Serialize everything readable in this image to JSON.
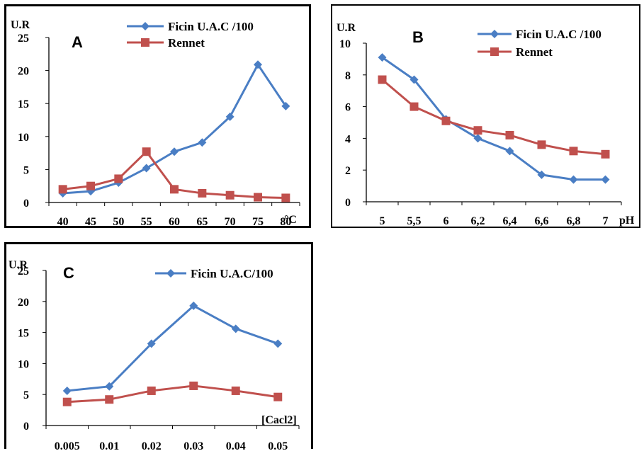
{
  "colors": {
    "ficin": "#4a7ec4",
    "rennet": "#c0504d"
  },
  "chart_data": [
    {
      "id": "A",
      "type": "line",
      "panel_letter": "A",
      "ylabel": "U.R",
      "xlabel": "°C",
      "categories": [
        "40",
        "45",
        "50",
        "55",
        "60",
        "65",
        "70",
        "75",
        "80"
      ],
      "ylim": [
        0,
        25
      ],
      "yticks": [
        "0",
        "5",
        "10",
        "15",
        "20",
        "25"
      ],
      "series": [
        {
          "name": "Ficin U.A.C /100",
          "marker": "diamond",
          "color": "#4a7ec4",
          "values": [
            1.4,
            1.7,
            3.0,
            5.2,
            7.7,
            9.1,
            13.0,
            20.9,
            14.6
          ]
        },
        {
          "name": "Rennet",
          "marker": "square",
          "color": "#c0504d",
          "values": [
            2.0,
            2.5,
            3.6,
            7.7,
            2.0,
            1.4,
            1.1,
            0.8,
            0.7
          ]
        }
      ],
      "legend": "top-right",
      "grid": false
    },
    {
      "id": "B",
      "type": "line",
      "panel_letter": "B",
      "ylabel": "U.R",
      "xlabel": "pH",
      "categories": [
        "5",
        "5,5",
        "6",
        "6,2",
        "6,4",
        "6,6",
        "6,8",
        "7"
      ],
      "ylim": [
        0,
        10
      ],
      "yticks": [
        "0",
        "2",
        "4",
        "6",
        "8",
        "10"
      ],
      "series": [
        {
          "name": "Ficin U.A.C /100",
          "marker": "diamond",
          "color": "#4a7ec4",
          "values": [
            9.1,
            7.7,
            5.2,
            4.0,
            3.2,
            1.7,
            1.4,
            1.4
          ]
        },
        {
          "name": "Rennet",
          "marker": "square",
          "color": "#c0504d",
          "values": [
            7.7,
            6.0,
            5.1,
            4.5,
            4.2,
            3.6,
            3.2,
            3.0
          ]
        }
      ],
      "legend": "top-right",
      "grid": false
    },
    {
      "id": "C",
      "type": "line",
      "panel_letter": "C",
      "ylabel": "U.R",
      "xlabel": "[Cacl2]",
      "categories": [
        "0.005",
        "0.01",
        "0.02",
        "0.03",
        "0.04",
        "0.05"
      ],
      "ylim": [
        0,
        25
      ],
      "yticks": [
        "0",
        "5",
        "10",
        "15",
        "20",
        "25"
      ],
      "series": [
        {
          "name": "Ficin U.A.C/100",
          "marker": "diamond",
          "color": "#4a7ec4",
          "values": [
            5.6,
            6.3,
            13.2,
            19.3,
            15.6,
            13.2
          ]
        },
        {
          "name": "",
          "marker": "square",
          "color": "#c0504d",
          "values": [
            3.8,
            4.2,
            5.6,
            6.4,
            5.6,
            4.6
          ]
        }
      ],
      "legend": "top-right",
      "grid": false
    }
  ]
}
